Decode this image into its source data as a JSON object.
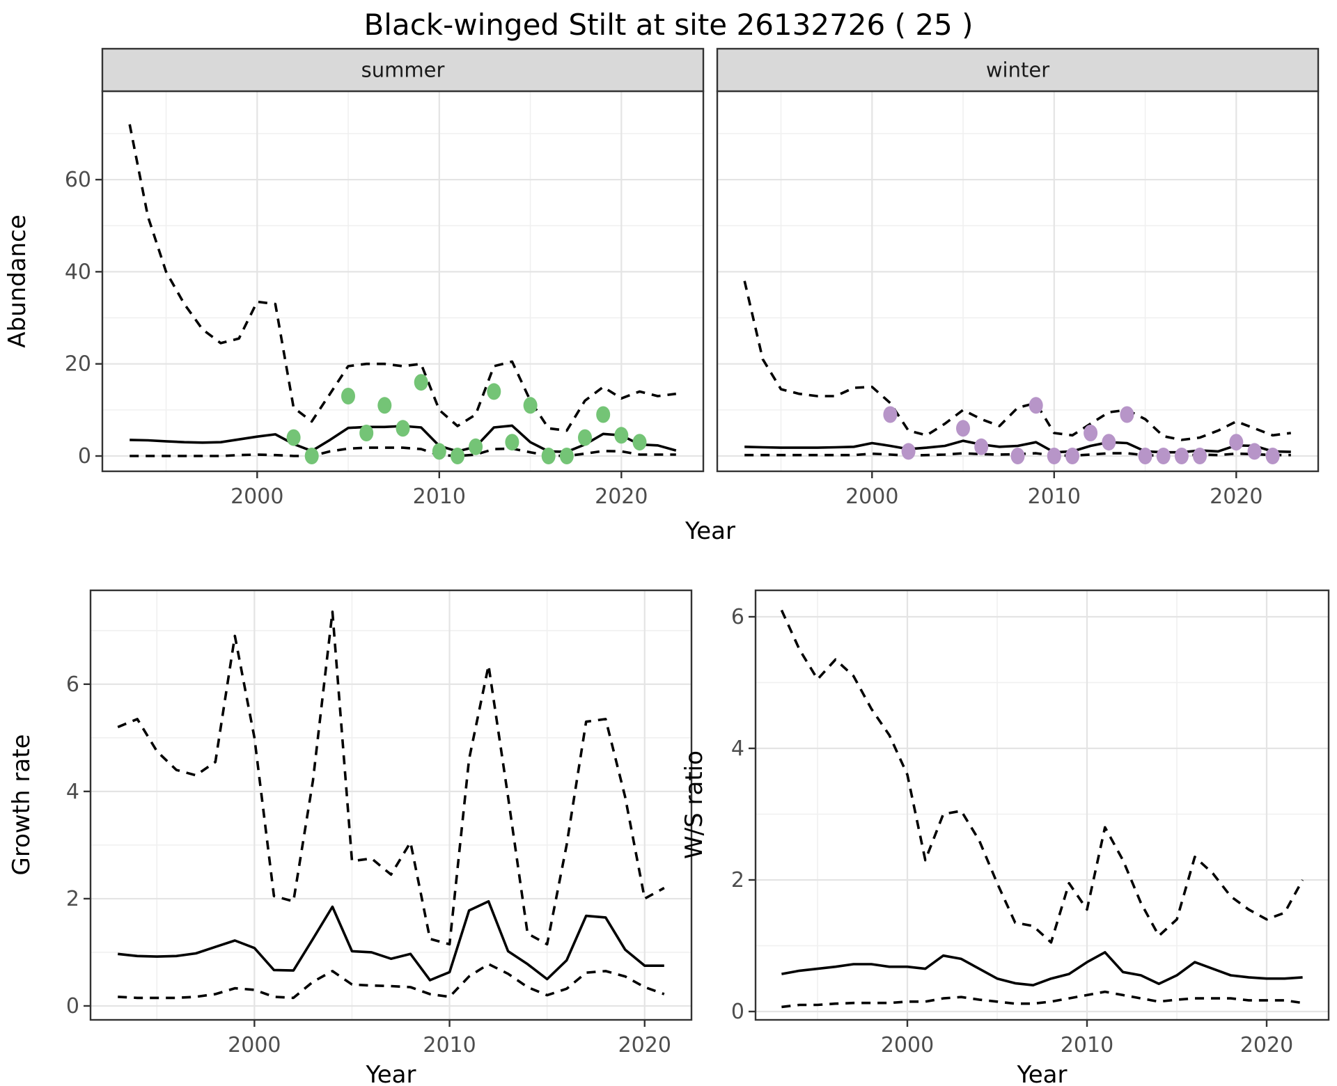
{
  "title": "Black-winged Stilt at site 26132726 ( 25 )",
  "colors": {
    "background": "#FFFFFF",
    "strip_bg": "#D9D9D9",
    "strip_border": "#333333",
    "panel_border": "#333333",
    "grid_major": "#E4E4E4",
    "grid_minor": "#F0F0F0",
    "tick": "#333333",
    "tick_label": "#4D4D4D",
    "line": "#000000",
    "summer_dot": "#74C476",
    "winter_dot": "#B795C8"
  },
  "chart_data": [
    {
      "id": "abundance-summer",
      "type": "line",
      "facet_label": "summer",
      "ylabel": "Abundance",
      "xlabel": "Year",
      "xlim": [
        1991.5,
        2024.5
      ],
      "ylim": [
        -3.32,
        79.2
      ],
      "xticks": [
        2000,
        2010,
        2020
      ],
      "xminor": [
        1995,
        2005,
        2015
      ],
      "yticks": [
        0,
        20,
        40,
        60
      ],
      "yminor": [
        10,
        30,
        50,
        70
      ],
      "x": [
        1993,
        1994,
        1995,
        1996,
        1997,
        1998,
        1999,
        2000,
        2001,
        2002,
        2003,
        2004,
        2005,
        2006,
        2007,
        2008,
        2009,
        2010,
        2011,
        2012,
        2013,
        2014,
        2015,
        2016,
        2017,
        2018,
        2019,
        2020,
        2021,
        2022,
        2023
      ],
      "series": [
        {
          "name": "upper-ci",
          "style": "dashed",
          "values": [
            72,
            52,
            40,
            33,
            27.5,
            24.5,
            25.5,
            33.5,
            33,
            10.5,
            7.5,
            13.5,
            19.5,
            20,
            20,
            19.5,
            20,
            10,
            6.5,
            9,
            19.5,
            20.5,
            12,
            6,
            5.5,
            12,
            15,
            12.5,
            14,
            13,
            13.5
          ]
        },
        {
          "name": "median",
          "style": "solid",
          "values": [
            3.5,
            3.4,
            3.2,
            3,
            2.9,
            3,
            3.6,
            4.2,
            4.7,
            2.6,
            1.1,
            3.5,
            6.1,
            6.3,
            6.3,
            6.5,
            6.2,
            2.2,
            1,
            2,
            6.2,
            6.6,
            3,
            1,
            0.9,
            2.5,
            4.8,
            4.5,
            2.5,
            2.3,
            1.2
          ]
        },
        {
          "name": "lower-ci",
          "style": "dashed",
          "values": [
            0,
            0,
            0,
            0,
            0,
            0,
            0.2,
            0.3,
            0.2,
            0,
            0,
            1,
            1.6,
            1.8,
            1.8,
            1.8,
            1.5,
            0.2,
            0,
            0.3,
            1.5,
            1.6,
            0.8,
            0.1,
            0,
            0.5,
            1.1,
            1,
            0.3,
            0.3,
            0.3
          ]
        }
      ],
      "points": {
        "name": "summer-observations",
        "color": "#74C476",
        "data": [
          [
            2002,
            4
          ],
          [
            2003,
            0
          ],
          [
            2005,
            13
          ],
          [
            2006,
            5
          ],
          [
            2007,
            11
          ],
          [
            2008,
            6
          ],
          [
            2009,
            16
          ],
          [
            2010,
            1
          ],
          [
            2011,
            0
          ],
          [
            2012,
            2
          ],
          [
            2013,
            14
          ],
          [
            2014,
            3
          ],
          [
            2015,
            11
          ],
          [
            2016,
            0
          ],
          [
            2017,
            0
          ],
          [
            2018,
            4
          ],
          [
            2019,
            9
          ],
          [
            2020,
            4.5
          ],
          [
            2021,
            3
          ]
        ]
      }
    },
    {
      "id": "abundance-winter",
      "type": "line",
      "facet_label": "winter",
      "ylabel": "Abundance",
      "xlabel": "Year",
      "xlim": [
        1991.5,
        2024.5
      ],
      "ylim": [
        -3.32,
        79.2
      ],
      "xticks": [
        2000,
        2010,
        2020
      ],
      "xminor": [
        1995,
        2005,
        2015
      ],
      "yticks": [
        0,
        20,
        40,
        60
      ],
      "yminor": [
        10,
        30,
        50,
        70
      ],
      "x": [
        1993,
        1994,
        1995,
        1996,
        1997,
        1998,
        1999,
        2000,
        2001,
        2002,
        2003,
        2004,
        2005,
        2006,
        2007,
        2008,
        2009,
        2010,
        2011,
        2012,
        2013,
        2014,
        2015,
        2016,
        2017,
        2018,
        2019,
        2020,
        2021,
        2022,
        2023
      ],
      "series": [
        {
          "name": "upper-ci",
          "style": "dashed",
          "values": [
            38,
            21,
            14.5,
            13.5,
            13,
            13,
            14.8,
            15,
            11.5,
            5.5,
            4.5,
            7,
            10,
            8,
            6.5,
            10.5,
            11.5,
            5,
            4.5,
            7,
            9.5,
            10,
            8,
            4.3,
            3.5,
            4,
            5.5,
            7.5,
            6,
            4.5,
            5
          ]
        },
        {
          "name": "median",
          "style": "solid",
          "values": [
            2,
            1.9,
            1.8,
            1.8,
            1.8,
            1.9,
            2,
            2.8,
            2.2,
            1.5,
            1.8,
            2.2,
            3.3,
            2.5,
            2,
            2.2,
            3,
            0.8,
            1,
            2.2,
            3,
            2.8,
            1,
            0.8,
            0.8,
            1.2,
            1,
            2.3,
            2.2,
            1,
            0.9
          ]
        },
        {
          "name": "lower-ci",
          "style": "dashed",
          "values": [
            0.2,
            0.2,
            0.2,
            0.2,
            0.2,
            0.2,
            0.2,
            0.5,
            0.3,
            0.1,
            0.2,
            0.3,
            0.6,
            0.4,
            0.3,
            0.4,
            0.6,
            0.1,
            0.1,
            0.3,
            0.6,
            0.6,
            0.15,
            0.1,
            0.1,
            0.3,
            0.2,
            0.5,
            0.4,
            0.2,
            0.2
          ]
        }
      ],
      "points": {
        "name": "winter-observations",
        "color": "#B795C8",
        "data": [
          [
            2001,
            9
          ],
          [
            2002,
            1
          ],
          [
            2005,
            6
          ],
          [
            2006,
            2
          ],
          [
            2008,
            0
          ],
          [
            2009,
            11
          ],
          [
            2010,
            0
          ],
          [
            2011,
            0
          ],
          [
            2012,
            5
          ],
          [
            2013,
            3
          ],
          [
            2014,
            9
          ],
          [
            2015,
            0
          ],
          [
            2016,
            0
          ],
          [
            2017,
            0
          ],
          [
            2018,
            0
          ],
          [
            2020,
            3
          ],
          [
            2021,
            1
          ],
          [
            2022,
            0
          ]
        ]
      }
    },
    {
      "id": "growth-rate",
      "type": "line",
      "facet_label": null,
      "ylabel": "Growth rate",
      "xlabel": "Year",
      "xlim": [
        1991.6,
        2022.4
      ],
      "ylim": [
        -0.26,
        7.75
      ],
      "xticks": [
        2000,
        2010,
        2020
      ],
      "xminor": [
        1995,
        2005,
        2015
      ],
      "yticks": [
        0,
        2,
        4,
        6
      ],
      "yminor": [
        1,
        3,
        5,
        7
      ],
      "x": [
        1993,
        1994,
        1995,
        1996,
        1997,
        1998,
        1999,
        2000,
        2001,
        2002,
        2003,
        2004,
        2005,
        2006,
        2007,
        2008,
        2009,
        2010,
        2011,
        2012,
        2013,
        2014,
        2015,
        2016,
        2017,
        2018,
        2019,
        2020,
        2021
      ],
      "series": [
        {
          "name": "upper-ci",
          "style": "dashed",
          "values": [
            5.2,
            5.35,
            4.75,
            4.4,
            4.3,
            4.55,
            6.9,
            5,
            2.05,
            1.95,
            4.2,
            7.35,
            2.7,
            2.75,
            2.45,
            3.05,
            1.25,
            1.15,
            4.6,
            6.35,
            3.9,
            1.35,
            1.15,
            3,
            5.3,
            5.35,
            3.9,
            2,
            2.2
          ]
        },
        {
          "name": "median",
          "style": "solid",
          "values": [
            0.97,
            0.93,
            0.92,
            0.93,
            0.98,
            1.1,
            1.22,
            1.08,
            0.67,
            0.66,
            1.25,
            1.85,
            1.02,
            1,
            0.88,
            0.97,
            0.48,
            0.63,
            1.78,
            1.95,
            1.02,
            0.78,
            0.5,
            0.85,
            1.68,
            1.65,
            1.05,
            0.75,
            0.75
          ]
        },
        {
          "name": "lower-ci",
          "style": "dashed",
          "values": [
            0.17,
            0.15,
            0.15,
            0.15,
            0.17,
            0.22,
            0.33,
            0.3,
            0.17,
            0.15,
            0.45,
            0.65,
            0.4,
            0.38,
            0.37,
            0.35,
            0.22,
            0.17,
            0.55,
            0.78,
            0.6,
            0.35,
            0.2,
            0.32,
            0.62,
            0.65,
            0.55,
            0.35,
            0.22
          ]
        }
      ]
    },
    {
      "id": "ws-ratio",
      "type": "line",
      "facet_label": null,
      "ylabel": "W/S ratio",
      "xlabel": "Year",
      "xlim": [
        1991.55,
        2023.45
      ],
      "ylim": [
        -0.127,
        6.402
      ],
      "xticks": [
        2000,
        2010,
        2020
      ],
      "xminor": [
        1995,
        2005,
        2015
      ],
      "yticks": [
        0,
        2,
        4,
        6
      ],
      "yminor": [
        1,
        3,
        5
      ],
      "x": [
        1993,
        1994,
        1995,
        1996,
        1997,
        1998,
        1999,
        2000,
        2001,
        2002,
        2003,
        2004,
        2005,
        2006,
        2007,
        2008,
        2009,
        2010,
        2011,
        2012,
        2013,
        2014,
        2015,
        2016,
        2017,
        2018,
        2019,
        2020,
        2021,
        2022
      ],
      "series": [
        {
          "name": "upper-ci",
          "style": "dashed",
          "values": [
            6.1,
            5.5,
            5.05,
            5.35,
            5.1,
            4.6,
            4.2,
            3.6,
            2.3,
            3,
            3.05,
            2.6,
            1.95,
            1.35,
            1.3,
            1.05,
            1.95,
            1.55,
            2.8,
            2.3,
            1.65,
            1.15,
            1.4,
            2.35,
            2.1,
            1.75,
            1.55,
            1.4,
            1.5,
            2
          ]
        },
        {
          "name": "median",
          "style": "solid",
          "values": [
            0.57,
            0.62,
            0.65,
            0.68,
            0.72,
            0.72,
            0.68,
            0.68,
            0.65,
            0.85,
            0.8,
            0.65,
            0.5,
            0.43,
            0.4,
            0.5,
            0.57,
            0.75,
            0.9,
            0.6,
            0.55,
            0.42,
            0.55,
            0.75,
            0.65,
            0.55,
            0.52,
            0.5,
            0.5,
            0.52
          ]
        },
        {
          "name": "lower-ci",
          "style": "dashed",
          "values": [
            0.07,
            0.1,
            0.1,
            0.12,
            0.13,
            0.13,
            0.13,
            0.15,
            0.15,
            0.2,
            0.22,
            0.18,
            0.15,
            0.12,
            0.12,
            0.15,
            0.2,
            0.25,
            0.3,
            0.25,
            0.2,
            0.15,
            0.18,
            0.2,
            0.2,
            0.2,
            0.17,
            0.17,
            0.17,
            0.13
          ]
        }
      ]
    }
  ]
}
